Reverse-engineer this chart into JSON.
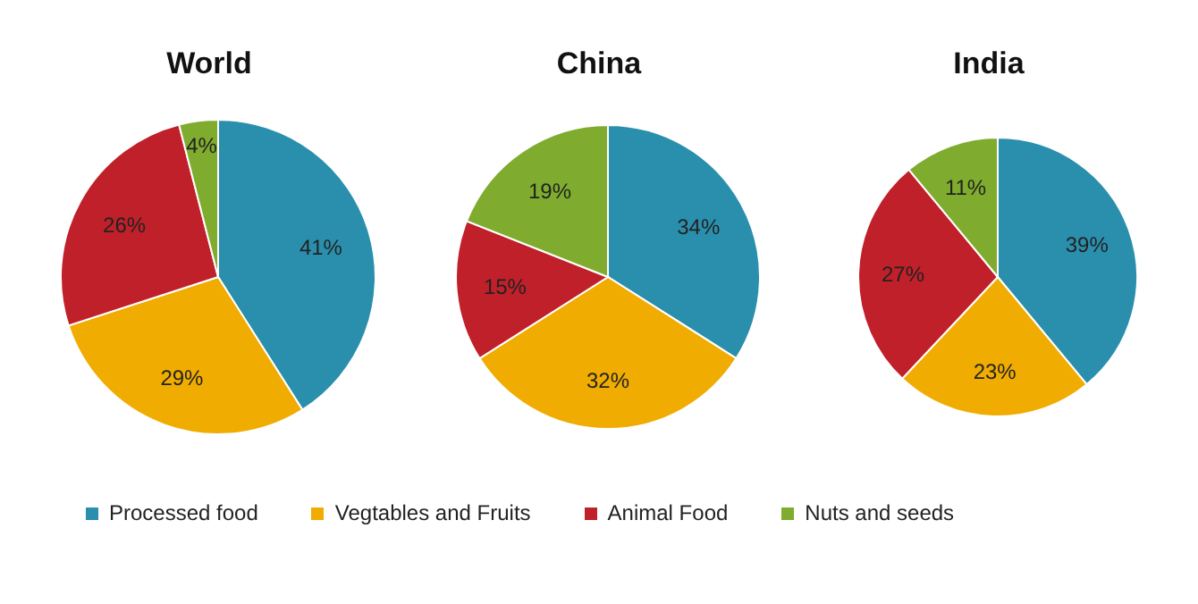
{
  "chart_data": [
    {
      "type": "pie",
      "title": "World",
      "categories": [
        "Processed food",
        "Vegtables and Fruits",
        "Animal Food",
        "Nuts and seeds"
      ],
      "values": [
        41,
        29,
        26,
        4
      ],
      "value_labels": [
        "41%",
        "29%",
        "26%",
        "4%"
      ],
      "colors": [
        "#2a8fad",
        "#f0ac00",
        "#c0202a",
        "#7fac2e"
      ],
      "legend": "bottom"
    },
    {
      "type": "pie",
      "title": "China",
      "values": [
        34,
        32,
        15,
        19
      ],
      "value_labels": [
        "34%",
        "32%",
        "15%",
        "19%"
      ],
      "colors": [
        "#2a8fad",
        "#f0ac00",
        "#c0202a",
        "#7fac2e"
      ]
    },
    {
      "type": "pie",
      "title": "India",
      "values": [
        39,
        23,
        27,
        11
      ],
      "value_labels": [
        "39%",
        "23%",
        "27%",
        "11%"
      ],
      "colors": [
        "#2a8fad",
        "#f0ac00",
        "#c0202a",
        "#7fac2e"
      ]
    }
  ]
}
